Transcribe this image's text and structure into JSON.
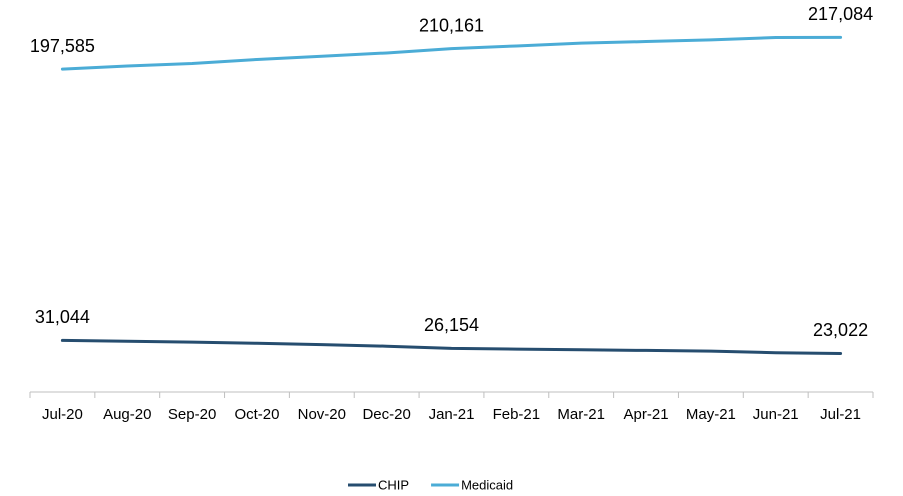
{
  "chart_data": {
    "type": "line",
    "categories": [
      "Jul-20",
      "Aug-20",
      "Sep-20",
      "Oct-20",
      "Nov-20",
      "Dec-20",
      "Jan-21",
      "Feb-21",
      "Mar-21",
      "Apr-21",
      "May-21",
      "Jun-21",
      "Jul-21"
    ],
    "series": [
      {
        "name": "CHIP",
        "color": "#264d6f",
        "values": [
          31044,
          30500,
          30000,
          29300,
          28500,
          27500,
          26154,
          25700,
          25300,
          24900,
          24500,
          23500,
          23022
        ],
        "value_labels": [
          "31,044",
          null,
          null,
          null,
          null,
          null,
          "26,154",
          null,
          null,
          null,
          null,
          null,
          "23,022"
        ]
      },
      {
        "name": "Medicaid",
        "color": "#4bacd6",
        "values": [
          197585,
          199500,
          201000,
          203500,
          205500,
          207500,
          210161,
          211800,
          213500,
          214500,
          215500,
          217000,
          217084
        ],
        "value_labels": [
          "197,585",
          null,
          null,
          null,
          null,
          null,
          "210,161",
          null,
          null,
          null,
          null,
          null,
          "217,084"
        ]
      }
    ],
    "ylim": [
      0,
      240000
    ],
    "legend": "bottom"
  }
}
